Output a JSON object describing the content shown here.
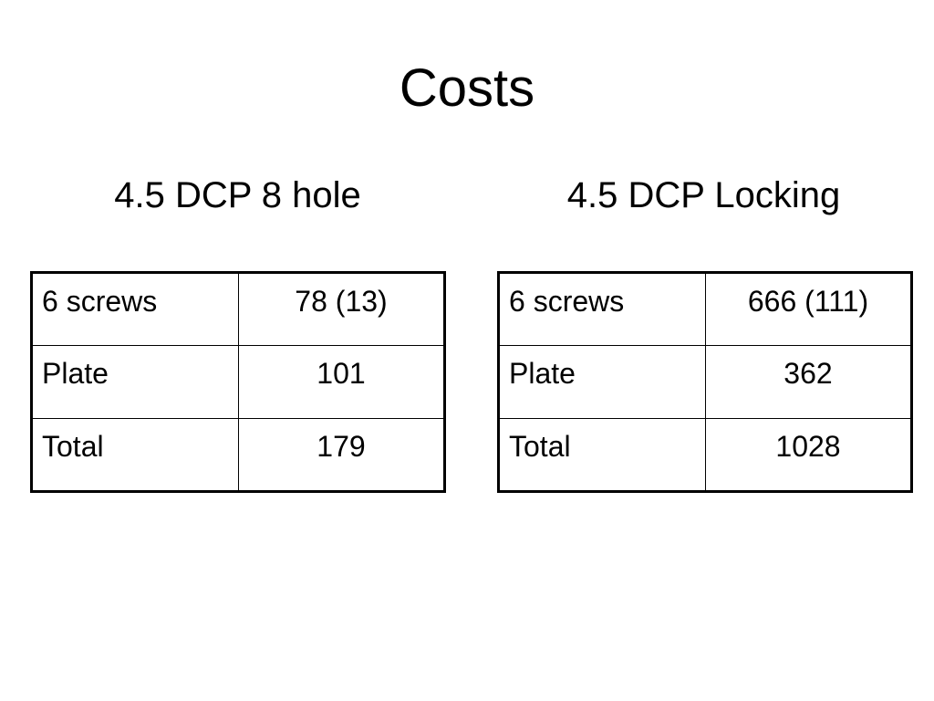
{
  "slide": {
    "title": "Costs"
  },
  "left": {
    "heading": "4.5 DCP 8 hole",
    "rows": [
      {
        "label": "6 screws",
        "value": "78 (13)"
      },
      {
        "label": "Plate",
        "value": "101"
      },
      {
        "label": "Total",
        "value": "179"
      }
    ]
  },
  "right": {
    "heading": "4.5 DCP Locking",
    "rows": [
      {
        "label": "6 screws",
        "value": "666 (111)"
      },
      {
        "label": "Plate",
        "value": "362"
      },
      {
        "label": "Total",
        "value": "1028"
      }
    ]
  }
}
